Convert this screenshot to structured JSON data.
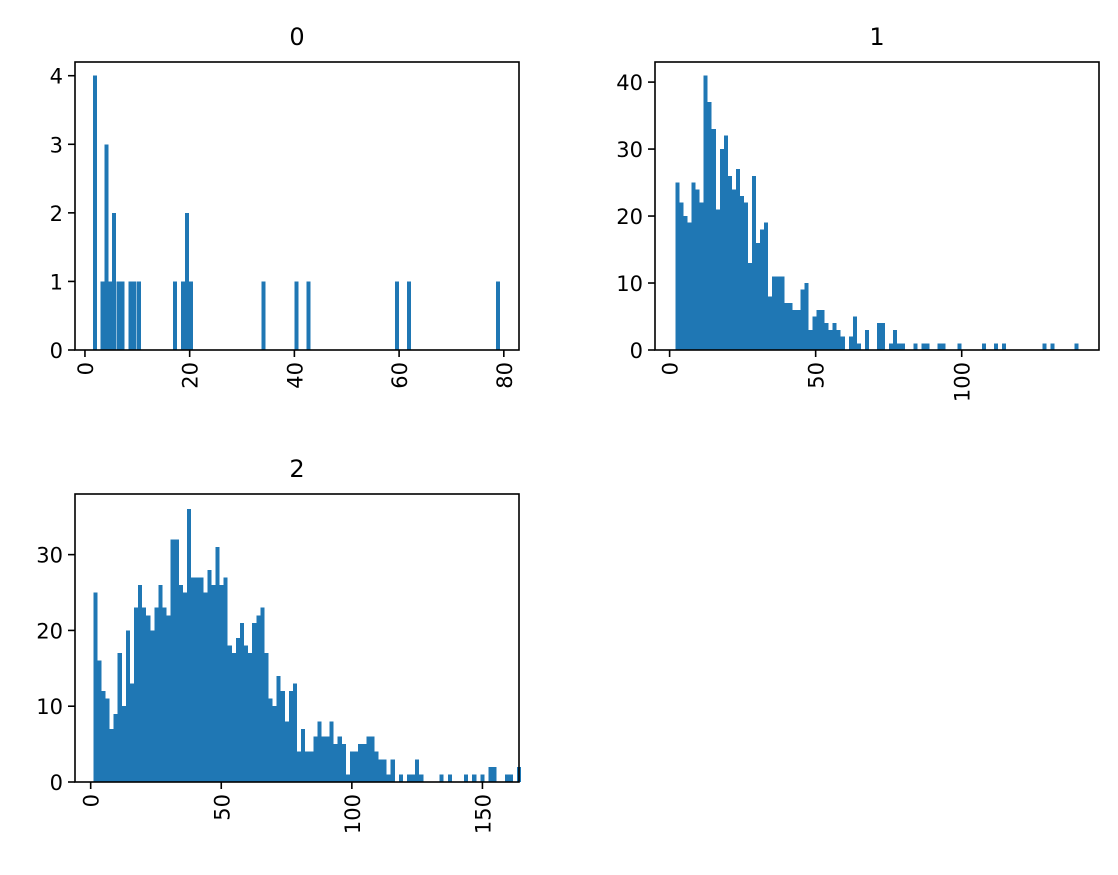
{
  "figure": {
    "layout": "2x2 grid, bottom-right empty",
    "background": "#ffffff"
  },
  "chart_data": [
    {
      "type": "bar",
      "title": "0",
      "xlabel": "",
      "ylabel": "",
      "bar_color": "#1f77b4",
      "xlim": [
        -1.9,
        82.9
      ],
      "ylim": [
        0,
        4.2
      ],
      "xticks": [
        0,
        20,
        40,
        60,
        80
      ],
      "xtick_labels": [
        "0",
        "20",
        "40",
        "60",
        "80"
      ],
      "xtick_rotation": 90,
      "yticks": [
        0,
        1,
        2,
        3,
        4
      ],
      "ytick_labels": [
        "0",
        "1",
        "2",
        "3",
        "4"
      ],
      "grid": false,
      "bin_width": 0.77,
      "x": [
        1.5,
        3.0,
        3.7,
        4.5,
        5.2,
        6.0,
        6.8,
        8.3,
        9.1,
        9.9,
        16.8,
        18.3,
        19.1,
        19.9,
        33.7,
        40.0,
        42.3,
        59.2,
        61.5,
        78.5
      ],
      "values": [
        4,
        1,
        3,
        1,
        2,
        1,
        1,
        1,
        1,
        1,
        1,
        1,
        2,
        1,
        1,
        1,
        1,
        1,
        1,
        1
      ]
    },
    {
      "type": "bar",
      "title": "1",
      "xlabel": "",
      "ylabel": "",
      "bar_color": "#1f77b4",
      "xlim": [
        -5,
        147
      ],
      "ylim": [
        0,
        43
      ],
      "xticks": [
        0,
        50,
        100
      ],
      "xtick_labels": [
        "0",
        "50",
        "100"
      ],
      "xtick_rotation": 90,
      "yticks": [
        0,
        10,
        20,
        30,
        40
      ],
      "ytick_labels": [
        "0",
        "10",
        "20",
        "30",
        "40"
      ],
      "grid": false,
      "bin_start": 2,
      "bin_width": 1.38,
      "values": [
        25,
        22,
        20,
        19,
        25,
        24,
        22,
        41,
        37,
        33,
        21,
        30,
        32,
        26,
        24,
        27,
        23,
        22,
        13,
        26,
        16,
        18,
        19,
        8,
        11,
        11,
        11,
        7,
        7,
        6,
        6,
        9,
        10,
        3,
        5,
        6,
        6,
        4,
        3,
        4,
        3,
        2,
        0,
        2,
        5,
        1,
        0,
        3,
        0,
        0,
        4,
        4,
        0,
        1,
        3,
        1,
        1,
        0,
        0,
        1,
        0,
        1,
        1,
        0,
        0,
        1,
        1,
        0,
        0,
        0,
        1,
        0,
        0,
        0,
        0,
        0,
        1,
        0,
        0,
        1,
        0,
        1,
        0,
        0,
        0,
        0,
        0,
        0,
        0,
        0,
        0,
        1,
        0,
        1,
        0,
        0,
        0,
        0,
        0,
        1
      ]
    },
    {
      "type": "bar",
      "title": "2",
      "xlabel": "",
      "ylabel": "",
      "bar_color": "#1f77b4",
      "xlim": [
        -6,
        164
      ],
      "ylim": [
        0,
        38
      ],
      "xticks": [
        0,
        50,
        100,
        150
      ],
      "xtick_labels": [
        "0",
        "50",
        "100",
        "150"
      ],
      "xtick_rotation": 90,
      "yticks": [
        0,
        10,
        20,
        30
      ],
      "ytick_labels": [
        "0",
        "10",
        "20",
        "30"
      ],
      "grid": false,
      "bin_start": 1,
      "bin_width": 1.56,
      "values": [
        25,
        16,
        12,
        11,
        7,
        9,
        17,
        10,
        20,
        13,
        23,
        26,
        23,
        22,
        20,
        23,
        26,
        23,
        22,
        32,
        32,
        26,
        25,
        36,
        27,
        27,
        27,
        25,
        28,
        26,
        31,
        26,
        27,
        18,
        17,
        19,
        21,
        18,
        17,
        21,
        22,
        23,
        17,
        11,
        10,
        14,
        12,
        8,
        12,
        13,
        4,
        7,
        4,
        4,
        6,
        8,
        6,
        6,
        8,
        5,
        6,
        5,
        1,
        4,
        4,
        5,
        5,
        6,
        6,
        4,
        3,
        3,
        1,
        3,
        0,
        1,
        0,
        1,
        1,
        3,
        1,
        0,
        0,
        0,
        0,
        1,
        0,
        1,
        0,
        0,
        0,
        1,
        0,
        1,
        0,
        1,
        0,
        2,
        2,
        0,
        0,
        1,
        1,
        0,
        2
      ]
    }
  ]
}
